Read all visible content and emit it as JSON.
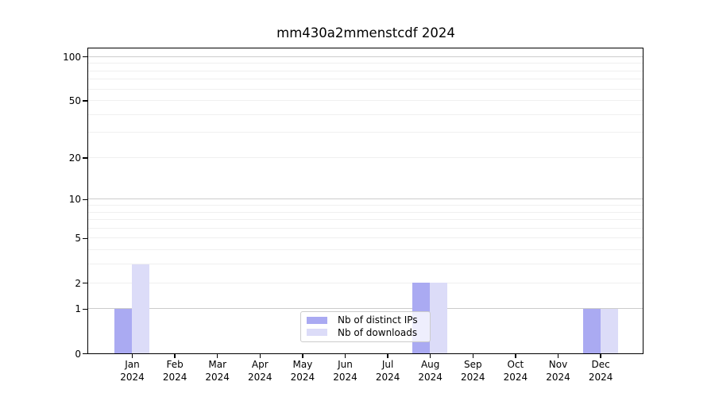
{
  "figure": {
    "background": "#ffffff"
  },
  "chart_data": {
    "type": "bar",
    "title": "mm430a2mmenstcdf 2024",
    "categories": [
      "Jan 2024",
      "Feb 2024",
      "Mar 2024",
      "Apr 2024",
      "May 2024",
      "Jun 2024",
      "Jul 2024",
      "Aug 2024",
      "Sep 2024",
      "Oct 2024",
      "Nov 2024",
      "Dec 2024"
    ],
    "series": [
      {
        "name": "Nb of distinct IPs",
        "color": "#aaaaf2",
        "values": [
          1,
          0,
          0,
          0,
          0,
          0,
          0,
          2,
          0,
          0,
          0,
          1
        ]
      },
      {
        "name": "Nb of downloads",
        "color": "#dcdcf8",
        "values": [
          3,
          0,
          0,
          0,
          0,
          0,
          0,
          2,
          0,
          0,
          0,
          1
        ]
      }
    ],
    "xlabel": "",
    "ylabel": "",
    "yaxis": {
      "scale": "log1p",
      "ticks": [
        0,
        1,
        2,
        5,
        10,
        20,
        50,
        100
      ],
      "major_gridlines": [
        1,
        10,
        100
      ],
      "minor_gridlines": [
        2,
        3,
        4,
        5,
        6,
        7,
        8,
        9,
        20,
        30,
        40,
        50,
        60,
        70,
        80,
        90
      ],
      "ylim": [
        0,
        113
      ]
    },
    "grid": true,
    "legend_position": "lower center inside plot"
  },
  "colors": {
    "major_grid": "#cccccc",
    "minor_grid": "#f0f0f0",
    "axis": "#000000",
    "text": "#000000",
    "legend_border": "#cccccc"
  }
}
